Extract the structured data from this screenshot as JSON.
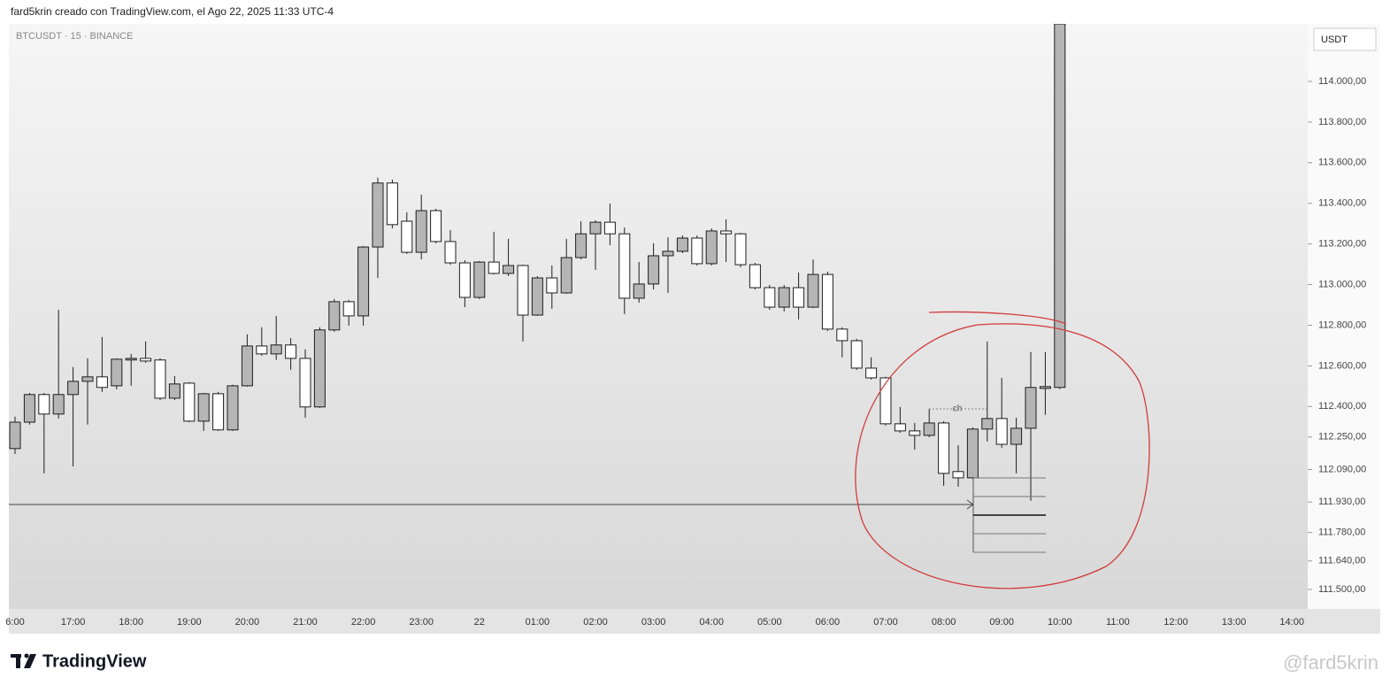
{
  "header": "fard5krin creado con TradingView.com, el Ago 22, 2025 11:33 UTC-4",
  "chart_data": {
    "type": "candlestick",
    "symbol": "BTCUSDT · 15 · BINANCE",
    "currency": "USDT",
    "annotation": "ch",
    "categories": [
      "6:00",
      null,
      null,
      null,
      "17:00",
      null,
      null,
      null,
      "18:00",
      null,
      null,
      null,
      "19:00",
      null,
      null,
      null,
      "20:00",
      null,
      null,
      null,
      "21:00",
      null,
      null,
      null,
      "22:00",
      null,
      null,
      null,
      "23:00",
      null,
      null,
      null,
      "22",
      null,
      null,
      null,
      "01:00",
      null,
      null,
      null,
      "02:00",
      null,
      null,
      null,
      "03:00",
      null,
      null,
      null,
      "04:00",
      null,
      null,
      null,
      "05:00",
      null,
      null,
      null,
      "06:00",
      null,
      null,
      null,
      "07:00",
      null,
      null,
      null,
      "08:00",
      null,
      null,
      null,
      "09:00",
      null,
      null,
      null,
      "10:00",
      null,
      null,
      null,
      "11:00",
      null,
      null,
      null,
      "12:00",
      null,
      null,
      null,
      "13:00",
      null,
      null,
      null,
      "14:00"
    ],
    "open": [
      112193,
      112323,
      112459,
      112363,
      112459,
      112524,
      112546,
      112502,
      112629,
      112637,
      112629,
      112441,
      112515,
      112328,
      112463,
      112285,
      112502,
      112698,
      112659,
      112703,
      112637,
      112398,
      112777,
      112916,
      112846,
      113185,
      113500,
      113312,
      113159,
      113364,
      113212,
      113107,
      112937,
      113111,
      113055,
      113094,
      112850,
      113033,
      112959,
      113133,
      113250,
      113307,
      113250,
      112933,
      113003,
      113142,
      113164,
      113229,
      113103,
      113264,
      113250,
      113098,
      112985,
      112889,
      112985,
      112889,
      113050,
      112781,
      112724,
      112589,
      112541,
      112315,
      112280,
      112258,
      112319,
      112080,
      112049,
      112289,
      112341,
      112214,
      112293,
      112489,
      112494,
      null,
      null,
      null,
      null,
      null,
      null,
      null,
      null,
      null,
      null,
      null,
      null,
      null,
      null,
      null,
      null
    ],
    "high": [
      112350,
      112467,
      112467,
      112876,
      112594,
      112637,
      112742,
      112637,
      112659,
      112720,
      112637,
      112550,
      112520,
      112467,
      112472,
      112507,
      112755,
      112790,
      112846,
      112737,
      112681,
      112790,
      112929,
      112925,
      113190,
      113526,
      113517,
      113356,
      113443,
      113373,
      113268,
      113120,
      113116,
      113260,
      113225,
      113098,
      113042,
      113094,
      113225,
      113312,
      113316,
      113399,
      113281,
      113111,
      113203,
      113233,
      113242,
      113242,
      113277,
      113321,
      113255,
      113107,
      112998,
      112998,
      113059,
      113124,
      113064,
      112790,
      112733,
      112642,
      112546,
      112398,
      112319,
      112389,
      112328,
      112210,
      112297,
      112720,
      112541,
      112345,
      112668,
      112668,
      114283,
      null,
      null,
      null,
      null,
      null,
      null,
      null,
      null,
      null,
      null,
      null,
      null,
      null,
      null,
      null,
      null
    ],
    "low": [
      112166,
      112311,
      112071,
      112341,
      112105,
      112311,
      112472,
      112485,
      112502,
      112615,
      112432,
      112432,
      112323,
      112280,
      112280,
      112280,
      112498,
      112650,
      112629,
      112581,
      112345,
      112393,
      112768,
      112798,
      112798,
      113033,
      113277,
      113151,
      113124,
      113203,
      113098,
      112889,
      112929,
      113050,
      113042,
      112720,
      112846,
      112881,
      112955,
      113124,
      113072,
      113194,
      112855,
      112911,
      112976,
      112959,
      113155,
      113094,
      113094,
      113111,
      113085,
      112976,
      112876,
      112868,
      112829,
      112885,
      112772,
      112642,
      112581,
      112533,
      112306,
      112271,
      112188,
      112249,
      112010,
      112005,
      112045,
      112228,
      112197,
      112071,
      111936,
      112359,
      112485,
      null,
      null,
      null,
      null,
      null,
      null,
      null,
      null,
      null,
      null,
      null,
      null,
      null,
      null,
      null,
      null
    ],
    "close": [
      112323,
      112459,
      112363,
      112459,
      112524,
      112546,
      112494,
      112633,
      112637,
      112624,
      112441,
      112511,
      112328,
      112463,
      112285,
      112502,
      112698,
      112659,
      112703,
      112637,
      112398,
      112777,
      112916,
      112846,
      113185,
      113500,
      113295,
      113159,
      113364,
      113212,
      113107,
      112937,
      113111,
      113055,
      113094,
      112850,
      113033,
      112959,
      113133,
      113250,
      113307,
      113250,
      112933,
      113003,
      113142,
      113164,
      113229,
      113103,
      113264,
      113250,
      113098,
      112985,
      112889,
      112985,
      112889,
      113050,
      112781,
      112724,
      112589,
      112541,
      112315,
      112280,
      112258,
      112319,
      112071,
      112049,
      112289,
      112341,
      112214,
      112293,
      112494,
      112498,
      114283,
      null,
      null,
      null,
      null,
      null,
      null,
      null,
      null,
      null,
      null,
      null,
      null,
      null,
      null,
      null,
      null
    ],
    "ylim": [
      111404,
      114283
    ],
    "yticks": [
      {
        "value": 114000,
        "label": "114.000,00"
      },
      {
        "value": 113800,
        "label": "113.800,00"
      },
      {
        "value": 113600,
        "label": "113.600,00"
      },
      {
        "value": 113400,
        "label": "113.400,00"
      },
      {
        "value": 113200,
        "label": "113.200,00"
      },
      {
        "value": 113000,
        "label": "113.000,00"
      },
      {
        "value": 112800,
        "label": "112.800,00"
      },
      {
        "value": 112600,
        "label": "112.600,00"
      },
      {
        "value": 112400,
        "label": "112.400,00"
      },
      {
        "value": 112250,
        "label": "112.250,00"
      },
      {
        "value": 112090,
        "label": "112.090,00"
      },
      {
        "value": 111930,
        "label": "111.930,00"
      },
      {
        "value": 111780,
        "label": "111.780,00"
      },
      {
        "value": 111640,
        "label": "111.640,00"
      },
      {
        "value": 111500,
        "label": "111.500,00"
      }
    ],
    "grid": false,
    "up_color": "#b5b5b5",
    "down_color": "#ffffff",
    "border_color": "#1e1e1e"
  },
  "footer": {
    "logo": "TradingView",
    "watermark": "@fard5krin"
  }
}
